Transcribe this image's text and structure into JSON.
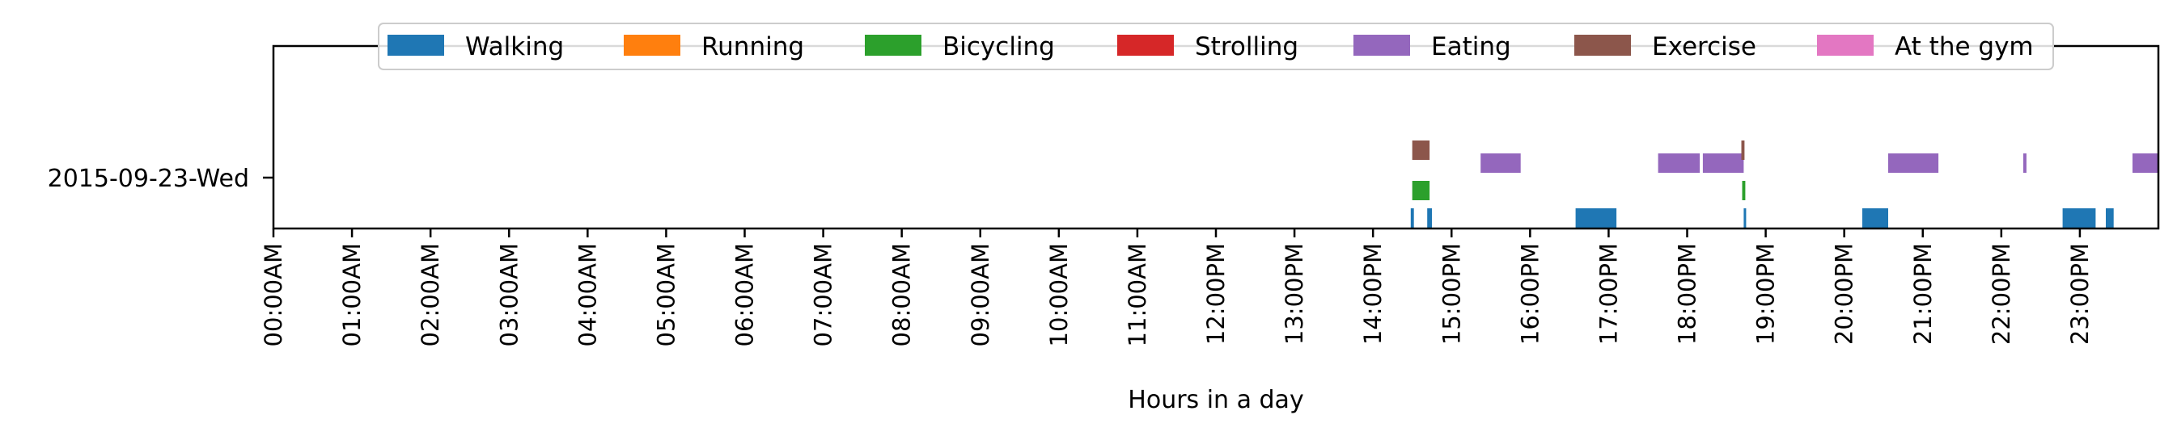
{
  "chart_data": {
    "type": "timeline",
    "xlabel": "Hours in a day",
    "ylabel": "",
    "xlim": [
      0,
      24
    ],
    "x_tick_labels": [
      "00:00AM",
      "01:00AM",
      "02:00AM",
      "03:00AM",
      "04:00AM",
      "05:00AM",
      "06:00AM",
      "07:00AM",
      "08:00AM",
      "09:00AM",
      "10:00AM",
      "11:00AM",
      "12:00PM",
      "13:00PM",
      "14:00PM",
      "15:00PM",
      "16:00PM",
      "17:00PM",
      "18:00PM",
      "19:00PM",
      "20:00PM",
      "21:00PM",
      "22:00PM",
      "23:00PM"
    ],
    "y_tick_label": "2015-09-23-Wed",
    "legend": [
      {
        "name": "Walking",
        "color": "#1f77b4"
      },
      {
        "name": "Running",
        "color": "#ff7f0e"
      },
      {
        "name": "Bicycling",
        "color": "#2ca02c"
      },
      {
        "name": "Strolling",
        "color": "#d62728"
      },
      {
        "name": "Eating",
        "color": "#9467bd"
      },
      {
        "name": "Exercise",
        "color": "#8c564b"
      },
      {
        "name": "At the gym",
        "color": "#e377c2"
      }
    ],
    "series": [
      {
        "name": "Walking",
        "level": 0,
        "intervals": [
          [
            14.48,
            14.52
          ],
          [
            14.69,
            14.75
          ],
          [
            16.58,
            17.1
          ],
          [
            18.72,
            18.75
          ],
          [
            20.23,
            20.56
          ],
          [
            22.78,
            23.2
          ],
          [
            23.33,
            23.43
          ]
        ]
      },
      {
        "name": "Bicycling",
        "level": 1,
        "intervals": [
          [
            14.5,
            14.72
          ],
          [
            18.7,
            18.74
          ]
        ]
      },
      {
        "name": "Eating",
        "level": 2,
        "intervals": [
          [
            15.37,
            15.88
          ],
          [
            17.63,
            18.16
          ],
          [
            18.2,
            18.72
          ],
          [
            20.56,
            21.2
          ],
          [
            22.28,
            22.32
          ],
          [
            23.67,
            24.0
          ]
        ]
      },
      {
        "name": "Exercise",
        "level": 3,
        "intervals": [
          [
            14.5,
            14.72
          ],
          [
            18.69,
            18.73
          ]
        ]
      }
    ]
  }
}
